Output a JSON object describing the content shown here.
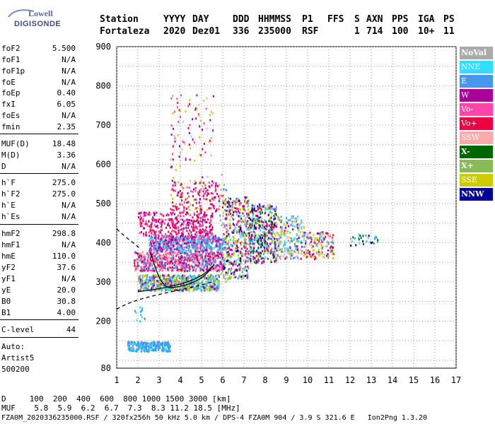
{
  "logo": {
    "line1": "Lowell",
    "line2": "DIGISONDE"
  },
  "header": {
    "row1": [
      {
        "key": "station",
        "text": "Station",
        "x": 0
      },
      {
        "key": "yyyy",
        "text": "YYYY",
        "x": 90
      },
      {
        "key": "day",
        "text": "DAY",
        "x": 131
      },
      {
        "key": "ddd",
        "text": "DDD",
        "x": 188
      },
      {
        "key": "hhmmss",
        "text": "HHMMSS",
        "x": 224
      },
      {
        "key": "p1",
        "text": "P1",
        "x": 286
      },
      {
        "key": "ffs",
        "text": "FFS",
        "x": 322
      },
      {
        "key": "s",
        "text": "S",
        "x": 360
      },
      {
        "key": "axn",
        "text": "AXN",
        "x": 377
      },
      {
        "key": "pps",
        "text": "PPS",
        "x": 413
      },
      {
        "key": "iga",
        "text": "IGA",
        "x": 450
      },
      {
        "key": "ps",
        "text": "PS",
        "x": 486
      }
    ],
    "row2": [
      {
        "key": "station",
        "text": "Fortaleza",
        "x": 0
      },
      {
        "key": "yyyy",
        "text": "2020",
        "x": 90
      },
      {
        "key": "day",
        "text": "Dez01",
        "x": 131
      },
      {
        "key": "ddd",
        "text": "336",
        "x": 188
      },
      {
        "key": "hhmmss",
        "text": "235000",
        "x": 224
      },
      {
        "key": "p1",
        "text": "RSF",
        "x": 286
      },
      {
        "key": "s",
        "text": "1",
        "x": 360
      },
      {
        "key": "axn",
        "text": "714",
        "x": 377
      },
      {
        "key": "pps",
        "text": "100",
        "x": 413
      },
      {
        "key": "iga",
        "text": "10+",
        "x": 450
      },
      {
        "key": "ps",
        "text": "11",
        "x": 486
      }
    ]
  },
  "params": [
    {
      "name": "foF2",
      "value": "5.500",
      "y": 62
    },
    {
      "name": "foF1",
      "value": "N/A",
      "y": 78
    },
    {
      "name": "foF1p",
      "value": "N/A",
      "y": 94
    },
    {
      "name": "foE",
      "value": "N/A",
      "y": 110
    },
    {
      "name": "foEp",
      "value": "0.40",
      "y": 125
    },
    {
      "name": "fxI",
      "value": "6.05",
      "y": 141
    },
    {
      "name": "foEs",
      "value": "N/A",
      "y": 157
    },
    {
      "name": "fmin",
      "value": "2.35",
      "y": 173
    },
    {
      "name": "MUF(D)",
      "value": "18.48",
      "y": 197
    },
    {
      "name": "M(D)",
      "value": "3.36",
      "y": 213
    },
    {
      "name": "D",
      "value": "N/A",
      "y": 229
    },
    {
      "name": "h`F",
      "value": "275.0",
      "y": 252
    },
    {
      "name": "h`F2",
      "value": "275.0",
      "y": 268
    },
    {
      "name": "h`E",
      "value": "N/A",
      "y": 284
    },
    {
      "name": "h`Es",
      "value": "N/A",
      "y": 300
    },
    {
      "name": "hmF2",
      "value": "298.8",
      "y": 324
    },
    {
      "name": "hmF1",
      "value": "N/A",
      "y": 340
    },
    {
      "name": "hmE",
      "value": "110.0",
      "y": 356
    },
    {
      "name": "yF2",
      "value": "37.6",
      "y": 372
    },
    {
      "name": "yF1",
      "value": "N/A",
      "y": 388
    },
    {
      "name": "yE",
      "value": "20.0",
      "y": 404
    },
    {
      "name": "B0",
      "value": "30.8",
      "y": 420
    },
    {
      "name": "B1",
      "value": "4.00",
      "y": 436
    },
    {
      "name": "C-level",
      "value": "44",
      "y": 460
    }
  ],
  "rules_y": [
    189,
    245,
    317,
    452,
    477
  ],
  "autoscale": {
    "line1": "Auto:",
    "line2": "Artist5",
    "line3": "500200"
  },
  "legend": [
    {
      "label": "NoVal",
      "color": "#aaaaaa",
      "text_color": "#ffffff",
      "bold": true
    },
    {
      "label": "NNE",
      "color": "#33ddff",
      "text_color": "#ffffff"
    },
    {
      "label": "E",
      "color": "#4499ee",
      "text_color": "#ffffff"
    },
    {
      "label": "W",
      "color": "#aa0099",
      "text_color": "#ffffff"
    },
    {
      "label": "Vo-",
      "color": "#ff44aa",
      "text_color": "#ffffff"
    },
    {
      "label": "Vo+",
      "color": "#ee0044",
      "text_color": "#ffffff"
    },
    {
      "label": "SSW",
      "color": "#ffaaaa",
      "text_color": "#ffffff"
    },
    {
      "label": "X-",
      "color": "#006600",
      "text_color": "#ffffff",
      "bold": true
    },
    {
      "label": "X+",
      "color": "#88bb55",
      "text_color": "#ffffff",
      "bold": true
    },
    {
      "label": "SSE",
      "color": "#cccc00",
      "text_color": "#ffffff"
    },
    {
      "label": "NNW",
      "color": "#000099",
      "text_color": "#ffffff",
      "bold": true
    }
  ],
  "chart_data": {
    "type": "scatter",
    "xlim": [
      1,
      17
    ],
    "ylim": [
      80,
      900
    ],
    "x_ticks": [
      "1",
      "2",
      "3",
      "4",
      "5",
      "6",
      "7",
      "8",
      "9",
      "10",
      "11",
      "12",
      "13",
      "14",
      "15",
      "16",
      "17"
    ],
    "y_ticks": [
      "80",
      "200",
      "300",
      "400",
      "500",
      "600",
      "700",
      "800",
      "900"
    ],
    "grid": true
  },
  "bottom": {
    "row_d": "D     100  200  400  600  800 1000 1500 3000 [km]",
    "row_muf": "MUF    5.8  5.9  6.2  6.7  7.3  8.3 11.2 18.5 [MHz]",
    "footer": "FZA0M_2020336235000.RSF / 320fx256h 50 kHz 5.0 km / DPS-4 FZA0M 904 / 3.9 S 321.6 E   Ion2Png 1.3.20"
  }
}
